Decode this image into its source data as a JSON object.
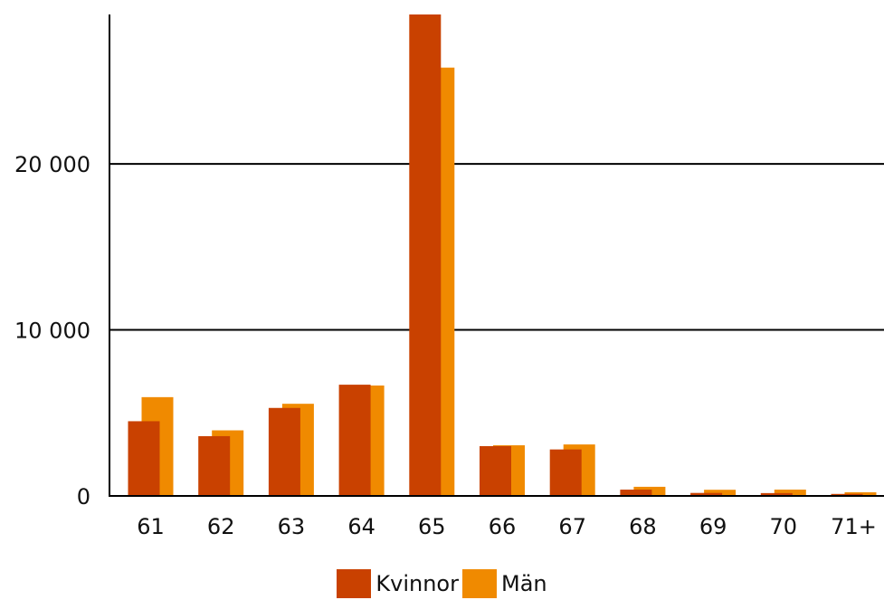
{
  "chart_data": {
    "type": "bar",
    "title": "",
    "xlabel": "",
    "ylabel": "",
    "categories": [
      "61",
      "62",
      "63",
      "64",
      "65",
      "66",
      "67",
      "68",
      "69",
      "70",
      "71+"
    ],
    "series": [
      {
        "name": "Kvinnor",
        "color": "#c94100",
        "values": [
          4500,
          3600,
          5300,
          6700,
          29000,
          3000,
          2800,
          380,
          180,
          170,
          120
        ]
      },
      {
        "name": "Män",
        "color": "#f08a00",
        "values": [
          5950,
          3950,
          5550,
          6650,
          25800,
          3050,
          3100,
          550,
          370,
          380,
          220
        ]
      }
    ],
    "ylim": [
      0,
      29000
    ],
    "yticks": [
      0,
      10000,
      20000
    ],
    "ytick_labels": [
      "0",
      "10 000",
      "20 000"
    ],
    "gridlines": [
      10000,
      20000
    ],
    "grid": true,
    "legend_position": "bottom-center"
  }
}
